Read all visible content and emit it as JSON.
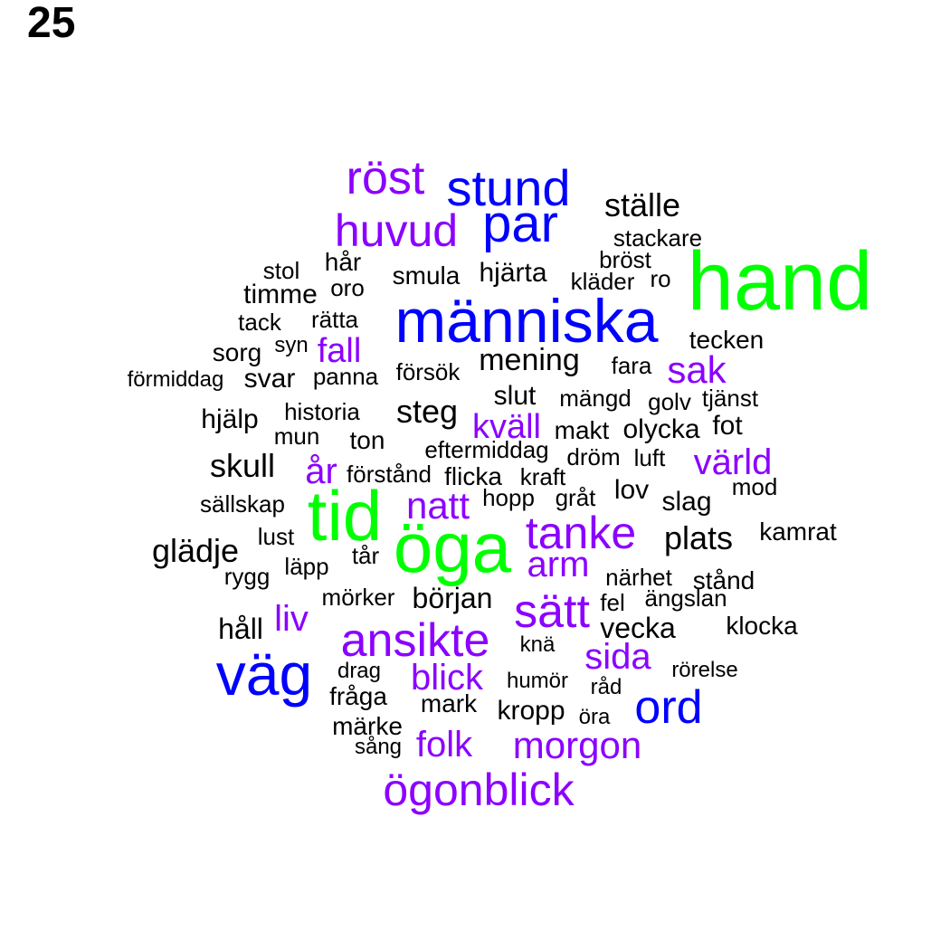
{
  "page_number": "25",
  "colors": {
    "green": "#00FF00",
    "blue": "#0000FF",
    "purple": "#8B00FF",
    "black": "#000000"
  },
  "words": [
    {
      "text": "hand",
      "size": 92,
      "color": "green"
    },
    {
      "text": "tid",
      "size": 78,
      "color": "green"
    },
    {
      "text": "öga",
      "size": 78,
      "color": "green"
    },
    {
      "text": "människa",
      "size": 68,
      "color": "blue"
    },
    {
      "text": "väg",
      "size": 66,
      "color": "blue"
    },
    {
      "text": "stund",
      "size": 56,
      "color": "blue"
    },
    {
      "text": "par",
      "size": 58,
      "color": "blue"
    },
    {
      "text": "ord",
      "size": 52,
      "color": "blue"
    },
    {
      "text": "röst",
      "size": 52,
      "color": "purple"
    },
    {
      "text": "huvud",
      "size": 50,
      "color": "purple"
    },
    {
      "text": "ansikte",
      "size": 52,
      "color": "purple"
    },
    {
      "text": "sätt",
      "size": 52,
      "color": "purple"
    },
    {
      "text": "tanke",
      "size": 50,
      "color": "purple"
    },
    {
      "text": "ögonblick",
      "size": 50,
      "color": "purple"
    },
    {
      "text": "sak",
      "size": 42,
      "color": "purple"
    },
    {
      "text": "natt",
      "size": 42,
      "color": "purple"
    },
    {
      "text": "morgon",
      "size": 42,
      "color": "purple"
    },
    {
      "text": "år",
      "size": 40,
      "color": "purple"
    },
    {
      "text": "liv",
      "size": 40,
      "color": "purple"
    },
    {
      "text": "folk",
      "size": 40,
      "color": "purple"
    },
    {
      "text": "blick",
      "size": 40,
      "color": "purple"
    },
    {
      "text": "värld",
      "size": 40,
      "color": "purple"
    },
    {
      "text": "arm",
      "size": 40,
      "color": "purple"
    },
    {
      "text": "sida",
      "size": 40,
      "color": "purple"
    },
    {
      "text": "kväll",
      "size": 38,
      "color": "purple"
    },
    {
      "text": "fall",
      "size": 38,
      "color": "purple"
    },
    {
      "text": "ställe",
      "size": 36,
      "color": "black"
    },
    {
      "text": "plats",
      "size": 36,
      "color": "black"
    },
    {
      "text": "glädje",
      "size": 36,
      "color": "black"
    },
    {
      "text": "skull",
      "size": 36,
      "color": "black"
    },
    {
      "text": "steg",
      "size": 36,
      "color": "black"
    },
    {
      "text": "mening",
      "size": 34,
      "color": "black"
    },
    {
      "text": "början",
      "size": 32,
      "color": "black"
    },
    {
      "text": "vecka",
      "size": 32,
      "color": "black"
    },
    {
      "text": "håll",
      "size": 32,
      "color": "black"
    },
    {
      "text": "hjärta",
      "size": 30,
      "color": "black"
    },
    {
      "text": "timme",
      "size": 30,
      "color": "black"
    },
    {
      "text": "slut",
      "size": 30,
      "color": "black"
    },
    {
      "text": "lov",
      "size": 30,
      "color": "black"
    },
    {
      "text": "slag",
      "size": 30,
      "color": "black"
    },
    {
      "text": "hjälp",
      "size": 30,
      "color": "black"
    },
    {
      "text": "svar",
      "size": 30,
      "color": "black"
    },
    {
      "text": "olycka",
      "size": 30,
      "color": "black"
    },
    {
      "text": "kropp",
      "size": 30,
      "color": "black"
    },
    {
      "text": "fot",
      "size": 30,
      "color": "black"
    },
    {
      "text": "sorg",
      "size": 28,
      "color": "black"
    },
    {
      "text": "smula",
      "size": 28,
      "color": "black"
    },
    {
      "text": "hår",
      "size": 28,
      "color": "black"
    },
    {
      "text": "tecken",
      "size": 28,
      "color": "black"
    },
    {
      "text": "makt",
      "size": 28,
      "color": "black"
    },
    {
      "text": "ton",
      "size": 28,
      "color": "black"
    },
    {
      "text": "kamrat",
      "size": 28,
      "color": "black"
    },
    {
      "text": "klocka",
      "size": 28,
      "color": "black"
    },
    {
      "text": "fråga",
      "size": 28,
      "color": "black"
    },
    {
      "text": "mark",
      "size": 28,
      "color": "black"
    },
    {
      "text": "märke",
      "size": 28,
      "color": "black"
    },
    {
      "text": "stånd",
      "size": 28,
      "color": "black"
    },
    {
      "text": "flicka",
      "size": 28,
      "color": "black"
    },
    {
      "text": "kraft",
      "size": 26,
      "color": "black"
    },
    {
      "text": "stol",
      "size": 26,
      "color": "black"
    },
    {
      "text": "tack",
      "size": 26,
      "color": "black"
    },
    {
      "text": "rätta",
      "size": 26,
      "color": "black"
    },
    {
      "text": "oro",
      "size": 26,
      "color": "black"
    },
    {
      "text": "kläder",
      "size": 26,
      "color": "black"
    },
    {
      "text": "stackare",
      "size": 26,
      "color": "black"
    },
    {
      "text": "bröst",
      "size": 26,
      "color": "black"
    },
    {
      "text": "ro",
      "size": 26,
      "color": "black"
    },
    {
      "text": "panna",
      "size": 26,
      "color": "black"
    },
    {
      "text": "försök",
      "size": 26,
      "color": "black"
    },
    {
      "text": "fara",
      "size": 26,
      "color": "black"
    },
    {
      "text": "mängd",
      "size": 26,
      "color": "black"
    },
    {
      "text": "golv",
      "size": 26,
      "color": "black"
    },
    {
      "text": "tjänst",
      "size": 26,
      "color": "black"
    },
    {
      "text": "historia",
      "size": 26,
      "color": "black"
    },
    {
      "text": "mun",
      "size": 26,
      "color": "black"
    },
    {
      "text": "eftermiddag",
      "size": 26,
      "color": "black"
    },
    {
      "text": "dröm",
      "size": 26,
      "color": "black"
    },
    {
      "text": "luft",
      "size": 26,
      "color": "black"
    },
    {
      "text": "förstånd",
      "size": 26,
      "color": "black"
    },
    {
      "text": "mod",
      "size": 26,
      "color": "black"
    },
    {
      "text": "sällskap",
      "size": 26,
      "color": "black"
    },
    {
      "text": "hopp",
      "size": 26,
      "color": "black"
    },
    {
      "text": "gråt",
      "size": 26,
      "color": "black"
    },
    {
      "text": "lust",
      "size": 26,
      "color": "black"
    },
    {
      "text": "tår",
      "size": 26,
      "color": "black"
    },
    {
      "text": "läpp",
      "size": 26,
      "color": "black"
    },
    {
      "text": "rygg",
      "size": 26,
      "color": "black"
    },
    {
      "text": "närhet",
      "size": 26,
      "color": "black"
    },
    {
      "text": "mörker",
      "size": 26,
      "color": "black"
    },
    {
      "text": "fel",
      "size": 26,
      "color": "black"
    },
    {
      "text": "ängslan",
      "size": 26,
      "color": "black"
    },
    {
      "text": "knä",
      "size": 24,
      "color": "black"
    },
    {
      "text": "drag",
      "size": 24,
      "color": "black"
    },
    {
      "text": "humör",
      "size": 24,
      "color": "black"
    },
    {
      "text": "råd",
      "size": 24,
      "color": "black"
    },
    {
      "text": "rörelse",
      "size": 24,
      "color": "black"
    },
    {
      "text": "öra",
      "size": 24,
      "color": "black"
    },
    {
      "text": "sång",
      "size": 24,
      "color": "black"
    },
    {
      "text": "syn",
      "size": 24,
      "color": "black"
    },
    {
      "text": "förmiddag",
      "size": 24,
      "color": "black"
    }
  ]
}
